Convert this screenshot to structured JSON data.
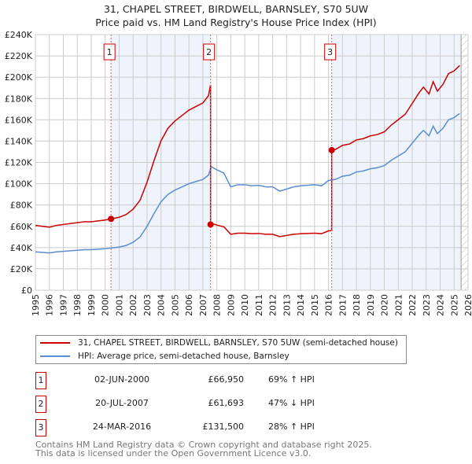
{
  "header": {
    "title": "31, CHAPEL STREET, BIRDWELL, BARNSLEY, S70 5UW",
    "subtitle": "Price paid vs. HM Land Registry's House Price Index (HPI)"
  },
  "chart_data": {
    "type": "line",
    "title": "31, CHAPEL STREET, BIRDWELL, BARNSLEY, S70 5UW",
    "subtitle": "Price paid vs. HM Land Registry's House Price Index (HPI)",
    "xlim": [
      1995,
      2026
    ],
    "ylim": [
      0,
      240000
    ],
    "x_ticks": [
      "1995",
      "1996",
      "1997",
      "1998",
      "1999",
      "2000",
      "2001",
      "2002",
      "2003",
      "2004",
      "2005",
      "2006",
      "2007",
      "2008",
      "2009",
      "2010",
      "2011",
      "2012",
      "2013",
      "2014",
      "2015",
      "2016",
      "2017",
      "2018",
      "2019",
      "2020",
      "2021",
      "2022",
      "2023",
      "2024",
      "2025",
      "2026"
    ],
    "y_ticks": [
      {
        "v": 0,
        "label": "£0"
      },
      {
        "v": 20000,
        "label": "£20K"
      },
      {
        "v": 40000,
        "label": "£40K"
      },
      {
        "v": 60000,
        "label": "£60K"
      },
      {
        "v": 80000,
        "label": "£80K"
      },
      {
        "v": 100000,
        "label": "£100K"
      },
      {
        "v": 120000,
        "label": "£120K"
      },
      {
        "v": 140000,
        "label": "£140K"
      },
      {
        "v": 160000,
        "label": "£160K"
      },
      {
        "v": 180000,
        "label": "£180K"
      },
      {
        "v": 200000,
        "label": "£200K"
      },
      {
        "v": 220000,
        "label": "£220K"
      },
      {
        "v": 240000,
        "label": "£240K"
      }
    ],
    "grid": true,
    "hatched_after": 2025.5,
    "series": [
      {
        "name": "31, CHAPEL STREET, BIRDWELL, BARNSLEY, S70 5UW (semi-detached house)",
        "color": "#cc0000",
        "derived_from_hpi_and_sales": true
      },
      {
        "name": "HPI: Average price, semi-detached house, Barnsley",
        "color": "#5b8dd0",
        "x": [
          1995,
          1995.5,
          1996,
          1996.5,
          1997,
          1997.5,
          1998,
          1998.5,
          1999,
          1999.5,
          2000,
          2000.42,
          2001,
          2001.5,
          2002,
          2002.5,
          2003,
          2003.5,
          2004,
          2004.5,
          2005,
          2005.5,
          2006,
          2006.5,
          2007,
          2007.4,
          2007.6,
          2008,
          2008.5,
          2009,
          2009.5,
          2010,
          2010.5,
          2011,
          2011.5,
          2012,
          2012.5,
          2013,
          2013.5,
          2014,
          2014.5,
          2015,
          2015.5,
          2016,
          2016.5,
          2017,
          2017.5,
          2018,
          2018.5,
          2019,
          2019.5,
          2020,
          2020.5,
          2021,
          2021.5,
          2022,
          2022.5,
          2022.8,
          2023.2,
          2023.5,
          2023.8,
          2024.2,
          2024.6,
          2025,
          2025.4
        ],
        "y": [
          36000,
          35500,
          35000,
          36000,
          36500,
          37000,
          37500,
          38000,
          38000,
          38500,
          39000,
          39600,
          40500,
          42000,
          45000,
          50000,
          60000,
          72000,
          83000,
          90000,
          94000,
          97000,
          100000,
          102000,
          104000,
          108000,
          116000,
          113000,
          110000,
          97000,
          99000,
          99000,
          98000,
          98500,
          97000,
          97000,
          93000,
          95000,
          97000,
          98000,
          98500,
          99000,
          98000,
          103000,
          104000,
          107000,
          108000,
          111000,
          112000,
          114000,
          115000,
          117000,
          122000,
          126000,
          130000,
          138000,
          146000,
          150000,
          145000,
          154000,
          147000,
          152000,
          160000,
          162000,
          166000
        ]
      }
    ],
    "sales": [
      {
        "n": "1",
        "x": 2000.42,
        "date": "02-JUN-2000",
        "price": "£66,950",
        "value": 66950,
        "change": "69% ↑ HPI"
      },
      {
        "n": "2",
        "x": 2007.55,
        "date": "20-JUL-2007",
        "price": "£61,693",
        "value": 61693,
        "change": "47% ↓ HPI"
      },
      {
        "n": "3",
        "x": 2016.23,
        "date": "24-MAR-2016",
        "price": "£131,500",
        "value": 131500,
        "change": "28% ↑ HPI"
      }
    ],
    "colors": {
      "property": "#cc0000",
      "hpi": "#5b8dd0",
      "shade": "#eef3fc"
    }
  },
  "legend": {
    "property": "31, CHAPEL STREET, BIRDWELL, BARNSLEY, S70 5UW (semi-detached house)",
    "hpi": "HPI: Average price, semi-detached house, Barnsley"
  },
  "footer": {
    "line1": "Contains HM Land Registry data © Crown copyright and database right 2025.",
    "line2": "This data is licensed under the Open Government Licence v3.0."
  }
}
